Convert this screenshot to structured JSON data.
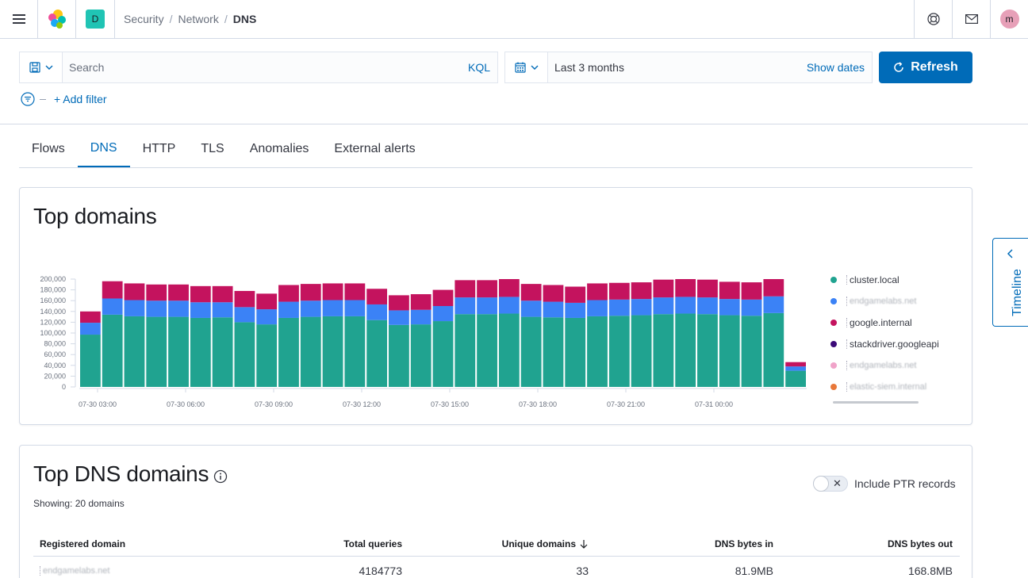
{
  "header": {
    "space_initial": "D",
    "breadcrumbs": [
      "Security",
      "Network",
      "DNS"
    ],
    "avatar_initial": "m"
  },
  "query": {
    "search_placeholder": "Search",
    "language": "KQL",
    "date_range": "Last 3 months",
    "show_dates": "Show dates",
    "refresh": "Refresh",
    "add_filter": "+ Add filter"
  },
  "tabs": [
    {
      "label": "Flows",
      "active": false
    },
    {
      "label": "DNS",
      "active": true
    },
    {
      "label": "HTTP",
      "active": false
    },
    {
      "label": "TLS",
      "active": false
    },
    {
      "label": "Anomalies",
      "active": false
    },
    {
      "label": "External alerts",
      "active": false
    }
  ],
  "top_domains": {
    "title": "Top domains",
    "legend": [
      {
        "label": "cluster.local",
        "color": "#20a390",
        "blurred": false
      },
      {
        "label": "endgamelabs.net",
        "color": "#3b82f6",
        "blurred": true
      },
      {
        "label": "google.internal",
        "color": "#c4135e",
        "blurred": false
      },
      {
        "label": "stackdriver.googleapi",
        "color": "#3b0a78",
        "blurred": false
      },
      {
        "label": "endgamelabs.net",
        "color": "#f0a3c9",
        "blurred": true
      },
      {
        "label": "elastic-siem.internal",
        "color": "#e8783a",
        "blurred": true
      }
    ]
  },
  "chart_data": {
    "type": "bar",
    "stacked": true,
    "ylim": [
      0,
      200000
    ],
    "y_ticks": [
      "200,000",
      "180,000",
      "160,000",
      "140,000",
      "120,000",
      "100,000",
      "80,000",
      "60,000",
      "40,000",
      "20,000",
      "0"
    ],
    "x_ticks": [
      "07-30 03:00",
      "07-30 06:00",
      "07-30 09:00",
      "07-30 12:00",
      "07-30 15:00",
      "07-30 18:00",
      "07-30 21:00",
      "07-31 00:00"
    ],
    "series": [
      {
        "name": "cluster.local",
        "color": "#20a390",
        "values": [
          97000,
          134000,
          131000,
          130000,
          130000,
          128000,
          129000,
          120000,
          116000,
          128000,
          130000,
          131000,
          131000,
          124000,
          115000,
          116000,
          122000,
          135000,
          135000,
          136000,
          130000,
          129000,
          128000,
          131000,
          132000,
          133000,
          135000,
          136000,
          135000,
          133000,
          132000,
          137000,
          30000
        ]
      },
      {
        "name": "endgamelabs.net",
        "color": "#3b82f6",
        "values": [
          22000,
          30000,
          30000,
          30000,
          30000,
          29000,
          28000,
          28000,
          28000,
          30000,
          30000,
          30000,
          30000,
          29000,
          27000,
          27000,
          28000,
          31000,
          31000,
          31000,
          30000,
          29000,
          28000,
          30000,
          30000,
          30000,
          31000,
          31000,
          31000,
          30000,
          30000,
          31000,
          8000
        ]
      },
      {
        "name": "google.internal",
        "color": "#c4135e",
        "values": [
          21000,
          32000,
          31000,
          30000,
          30000,
          30000,
          30000,
          30000,
          29000,
          31000,
          31000,
          31000,
          31000,
          29000,
          28000,
          29000,
          30000,
          32000,
          32000,
          33000,
          31000,
          31000,
          30000,
          31000,
          31000,
          31000,
          33000,
          33000,
          33000,
          32000,
          32000,
          32000,
          8000
        ]
      }
    ]
  },
  "top_dns_domains": {
    "title": "Top DNS domains",
    "showing": "Showing: 20 domains",
    "ptr_label": "Include PTR records",
    "columns": [
      "Registered domain",
      "Total queries",
      "Unique domains",
      "DNS bytes in",
      "DNS bytes out"
    ],
    "rows": [
      {
        "domain": "endgamelabs.net",
        "total": "4184773",
        "unique": "33",
        "bytes_in": "81.9MB",
        "bytes_out": "168.8MB"
      }
    ]
  },
  "timeline": {
    "label": "Timeline"
  }
}
